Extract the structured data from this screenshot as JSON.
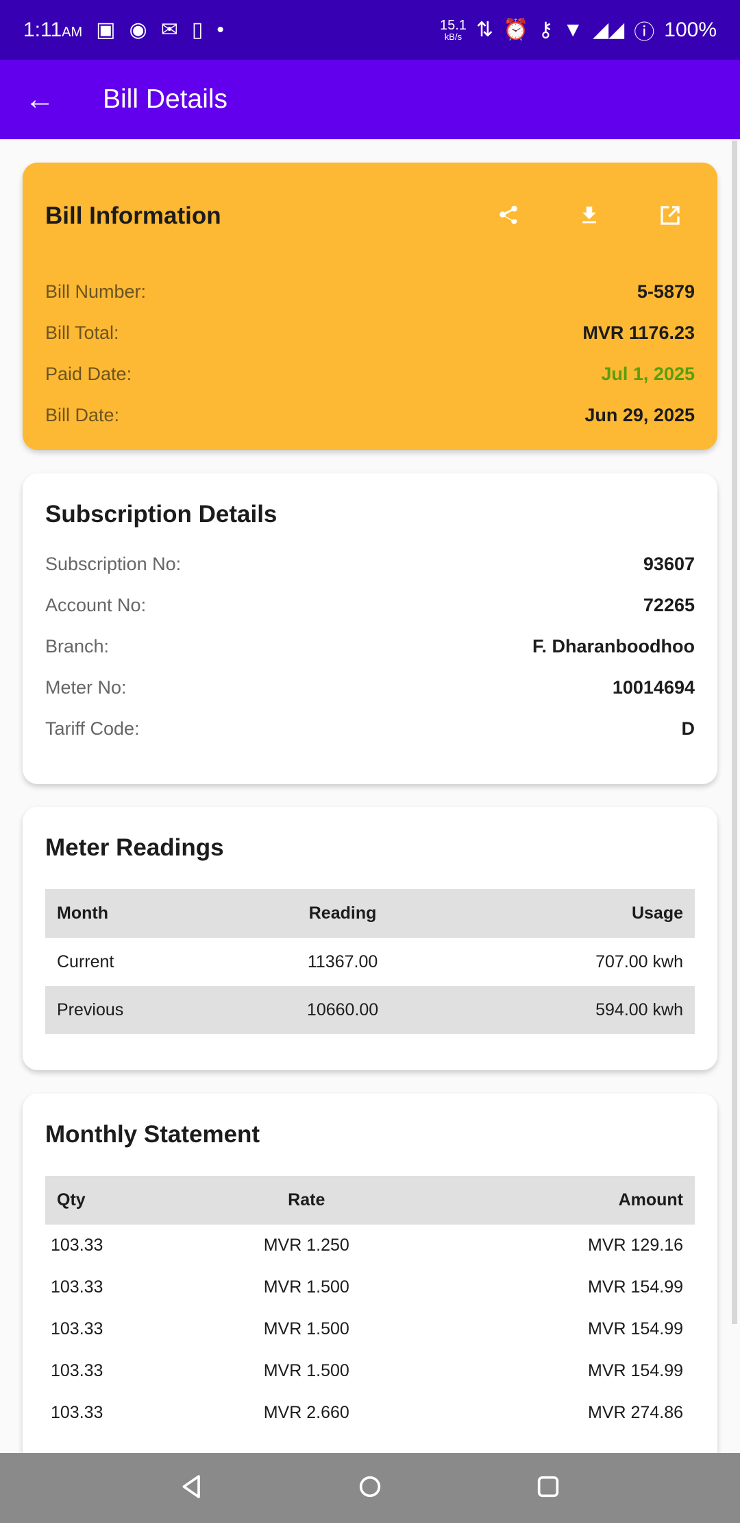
{
  "status_bar": {
    "time": "1:11",
    "ampm": "AM",
    "net_speed": "15.1",
    "net_unit": "kB/s",
    "battery": "100%"
  },
  "app_bar": {
    "title": "Bill Details"
  },
  "bill_info": {
    "title": "Bill Information",
    "rows": [
      {
        "label": "Bill Number:",
        "value": "5-5879"
      },
      {
        "label": "Bill Total:",
        "value": "MVR 1176.23"
      },
      {
        "label": "Paid Date:",
        "value": "Jul 1, 2025",
        "color": "#5a9e0f"
      },
      {
        "label": "Bill Date:",
        "value": "Jun 29, 2025"
      }
    ]
  },
  "subscription": {
    "title": "Subscription Details",
    "rows": [
      {
        "label": "Subscription No:",
        "value": "93607"
      },
      {
        "label": "Account No:",
        "value": "72265"
      },
      {
        "label": "Branch:",
        "value": "F. Dharanboodhoo"
      },
      {
        "label": "Meter No:",
        "value": "10014694"
      },
      {
        "label": "Tariff Code:",
        "value": "D"
      }
    ]
  },
  "meter": {
    "title": "Meter Readings",
    "headers": [
      "Month",
      "Reading",
      "Usage"
    ],
    "rows": [
      [
        "Current",
        "11367.00",
        "707.00 kwh"
      ],
      [
        "Previous",
        "10660.00",
        "594.00 kwh"
      ]
    ]
  },
  "statement": {
    "title": "Monthly Statement",
    "headers": [
      "Qty",
      "Rate",
      "Amount"
    ],
    "rows": [
      [
        "103.33",
        "MVR 1.250",
        "MVR 129.16"
      ],
      [
        "103.33",
        "MVR 1.500",
        "MVR 154.99"
      ],
      [
        "103.33",
        "MVR 1.500",
        "MVR 154.99"
      ],
      [
        "103.33",
        "MVR 1.500",
        "MVR 154.99"
      ],
      [
        "103.33",
        "MVR 2.660",
        "MVR 274.86"
      ]
    ]
  },
  "colors": {
    "status_bar": "#3700b3",
    "app_bar": "#6200ee",
    "bill_card": "#fdb933",
    "paid": "#5a9e0f"
  }
}
